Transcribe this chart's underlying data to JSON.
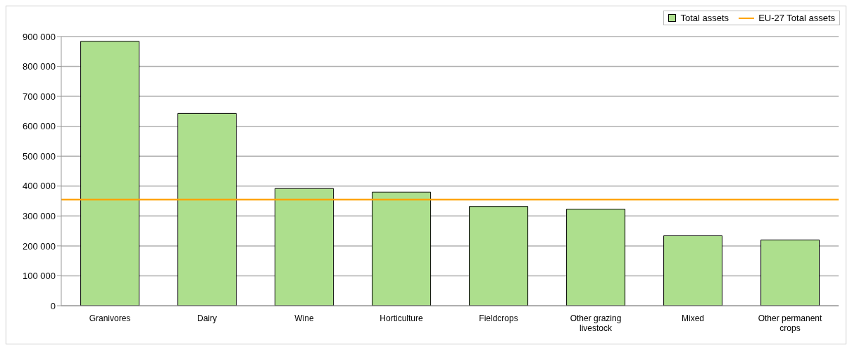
{
  "chart_data": {
    "type": "bar",
    "categories": [
      "Granivores",
      "Dairy",
      "Wine",
      "Horticulture",
      "Fieldcrops",
      "Other grazing livestock",
      "Mixed",
      "Other permanent crops"
    ],
    "series": [
      {
        "name": "Total assets",
        "color": "#addf8d",
        "values": [
          884000,
          643000,
          392000,
          380000,
          332000,
          323000,
          234000,
          220000
        ]
      }
    ],
    "ref_lines": [
      {
        "axis": "y",
        "value": 355000,
        "label": "EU-27 Total assets",
        "color": "#ffa500"
      }
    ],
    "ylim": [
      0,
      900000
    ],
    "yticks": [
      {
        "value": 0,
        "label": "0"
      },
      {
        "value": 100000,
        "label": "100 000"
      },
      {
        "value": 200000,
        "label": "200 000"
      },
      {
        "value": 300000,
        "label": "300 000"
      },
      {
        "value": 400000,
        "label": "400 000"
      },
      {
        "value": 500000,
        "label": "500 000"
      },
      {
        "value": 600000,
        "label": "600 000"
      },
      {
        "value": 700000,
        "label": "700 000"
      },
      {
        "value": 800000,
        "label": "800 000"
      },
      {
        "value": 900000,
        "label": "900 000"
      }
    ],
    "grid": "y",
    "legend": "top right"
  }
}
